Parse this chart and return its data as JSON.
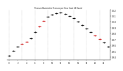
{
  "hours": [
    0,
    1,
    2,
    3,
    4,
    5,
    6,
    7,
    8,
    9,
    10,
    11,
    12,
    13,
    14,
    15,
    16,
    17,
    18,
    19,
    20,
    21,
    22,
    23
  ],
  "pressure": [
    29.42,
    29.5,
    29.58,
    29.62,
    29.66,
    29.72,
    29.82,
    29.92,
    30.01,
    30.08,
    30.12,
    30.14,
    30.15,
    30.13,
    30.1,
    30.06,
    30.0,
    29.94,
    29.88,
    29.82,
    29.76,
    29.7,
    29.64,
    29.58
  ],
  "red_indices": [
    3,
    4,
    7,
    8,
    20,
    21
  ],
  "line_color": "#000000",
  "dot_color": "#000000",
  "highlight_color": "#cc0000",
  "bg_color": "#ffffff",
  "grid_color": "#999999",
  "ylabel_color": "#000000",
  "ylim_min": 29.35,
  "ylim_max": 30.2,
  "yticks": [
    29.4,
    29.5,
    29.6,
    29.7,
    29.8,
    29.9,
    30.0,
    30.1,
    30.2
  ],
  "xtick_step": 2,
  "title": "Pressure Barometric Pressure per Hour (Last 24 Hours)"
}
